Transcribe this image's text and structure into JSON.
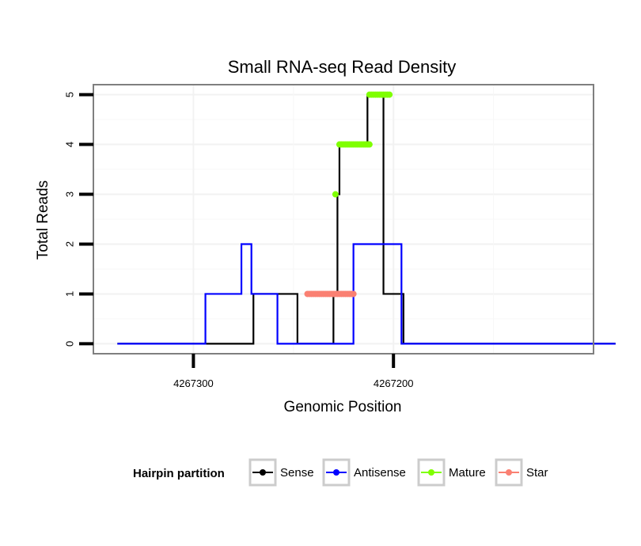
{
  "chart_data": {
    "type": "line",
    "title": "Small RNA-seq Read Density",
    "xlabel": "Genomic Position",
    "ylabel": "Total Reads",
    "x_reversed": true,
    "xlim": [
      4267350,
      4267100
    ],
    "ylim": [
      -0.2,
      5.2
    ],
    "x_ticks": [
      {
        "value": 4267300,
        "label": "4267300"
      },
      {
        "value": 4267200,
        "label": "4267200"
      }
    ],
    "y_ticks": [
      {
        "value": 0,
        "label": "0"
      },
      {
        "value": 1,
        "label": "1"
      },
      {
        "value": 2,
        "label": "2"
      },
      {
        "value": 3,
        "label": "3"
      },
      {
        "value": 4,
        "label": "4"
      },
      {
        "value": 5,
        "label": "5"
      }
    ],
    "grid": true,
    "legend": {
      "title": "Hairpin partition",
      "position": "bottom",
      "entries": [
        {
          "label": "Sense",
          "color": "#000000"
        },
        {
          "label": "Antisense",
          "color": "#0000ff"
        },
        {
          "label": "Mature",
          "color": "#7fff00"
        },
        {
          "label": "Star",
          "color": "#fa8072"
        }
      ]
    },
    "series": [
      {
        "name": "Sense",
        "color": "#000000",
        "style": "line",
        "points": [
          [
            4267338,
            0
          ],
          [
            4267270,
            0
          ],
          [
            4267270,
            1
          ],
          [
            4267248,
            1
          ],
          [
            4267248,
            0
          ],
          [
            4267230,
            0
          ],
          [
            4267230,
            1
          ],
          [
            4267228,
            1
          ],
          [
            4267228,
            3
          ],
          [
            4267227,
            3
          ],
          [
            4267227,
            4
          ],
          [
            4267213,
            4
          ],
          [
            4267213,
            5
          ],
          [
            4267205,
            5
          ],
          [
            4267205,
            1
          ],
          [
            4267195,
            1
          ],
          [
            4267195,
            0
          ],
          [
            4267089,
            0
          ]
        ]
      },
      {
        "name": "Antisense",
        "color": "#0000ff",
        "style": "line",
        "points": [
          [
            4267338,
            0
          ],
          [
            4267294,
            0
          ],
          [
            4267294,
            1
          ],
          [
            4267276,
            1
          ],
          [
            4267276,
            2
          ],
          [
            4267271,
            2
          ],
          [
            4267271,
            1
          ],
          [
            4267258,
            1
          ],
          [
            4267258,
            0
          ],
          [
            4267220,
            0
          ],
          [
            4267220,
            2
          ],
          [
            4267196,
            2
          ],
          [
            4267196,
            0
          ],
          [
            4267089,
            0
          ]
        ]
      },
      {
        "name": "Mature",
        "color": "#7fff00",
        "style": "points",
        "segments": [
          {
            "x_start": 4267229,
            "x_end": 4267229,
            "y": 3
          },
          {
            "x_start": 4267227,
            "x_end": 4267212,
            "y": 4
          },
          {
            "x_start": 4267212,
            "x_end": 4267202,
            "y": 5
          }
        ]
      },
      {
        "name": "Star",
        "color": "#fa8072",
        "style": "points",
        "segments": [
          {
            "x_start": 4267243,
            "x_end": 4267220,
            "y": 1
          }
        ]
      }
    ]
  }
}
